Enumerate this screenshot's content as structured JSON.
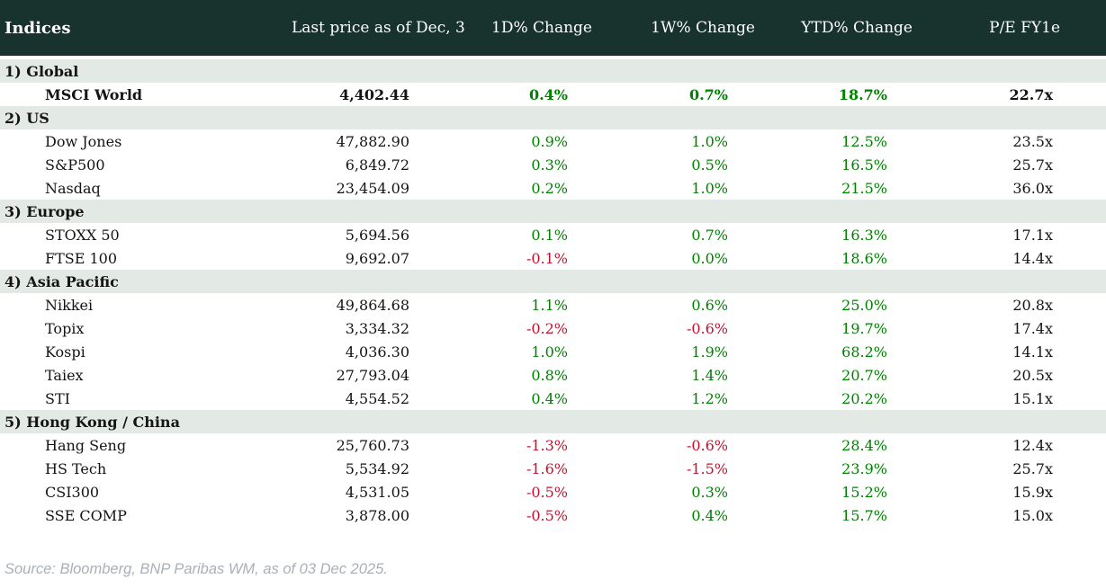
{
  "table": {
    "columns": [
      "Indices",
      "Last price as of Dec, 3",
      "1D% Change",
      "1W% Change",
      "YTD% Change",
      "P/E FY1e"
    ],
    "sections": [
      {
        "label": "1) Global",
        "rows": [
          {
            "name": "MSCI World",
            "price": "4,402.44",
            "d1": "0.4%",
            "w1": "0.7%",
            "ytd": "18.7%",
            "pe": "22.7x",
            "emphasis": true
          }
        ]
      },
      {
        "label": "2) US",
        "rows": [
          {
            "name": "Dow Jones",
            "price": "47,882.90",
            "d1": "0.9%",
            "w1": "1.0%",
            "ytd": "12.5%",
            "pe": "23.5x"
          },
          {
            "name": "S&P500",
            "price": "6,849.72",
            "d1": "0.3%",
            "w1": "0.5%",
            "ytd": "16.5%",
            "pe": "25.7x"
          },
          {
            "name": "Nasdaq",
            "price": "23,454.09",
            "d1": "0.2%",
            "w1": "1.0%",
            "ytd": "21.5%",
            "pe": "36.0x"
          }
        ]
      },
      {
        "label": "3) Europe",
        "rows": [
          {
            "name": "STOXX 50",
            "price": "5,694.56",
            "d1": "0.1%",
            "w1": "0.7%",
            "ytd": "16.3%",
            "pe": "17.1x"
          },
          {
            "name": "FTSE 100",
            "price": "9,692.07",
            "d1": "-0.1%",
            "w1": "0.0%",
            "ytd": "18.6%",
            "pe": "14.4x"
          }
        ]
      },
      {
        "label": "4) Asia Pacific",
        "rows": [
          {
            "name": "Nikkei",
            "price": "49,864.68",
            "d1": "1.1%",
            "w1": "0.6%",
            "ytd": "25.0%",
            "pe": "20.8x"
          },
          {
            "name": "Topix",
            "price": "3,334.32",
            "d1": "-0.2%",
            "w1": "-0.6%",
            "ytd": "19.7%",
            "pe": "17.4x"
          },
          {
            "name": "Kospi",
            "price": "4,036.30",
            "d1": "1.0%",
            "w1": "1.9%",
            "ytd": "68.2%",
            "pe": "14.1x"
          },
          {
            "name": "Taiex",
            "price": "27,793.04",
            "d1": "0.8%",
            "w1": "1.4%",
            "ytd": "20.7%",
            "pe": "20.5x"
          },
          {
            "name": "STI",
            "price": "4,554.52",
            "d1": "0.4%",
            "w1": "1.2%",
            "ytd": "20.2%",
            "pe": "15.1x"
          }
        ]
      },
      {
        "label": "5) Hong Kong / China",
        "rows": [
          {
            "name": "Hang Seng",
            "price": "25,760.73",
            "d1": "-1.3%",
            "w1": "-0.6%",
            "ytd": "28.4%",
            "pe": "12.4x"
          },
          {
            "name": "HS Tech",
            "price": "5,534.92",
            "d1": "-1.6%",
            "w1": "-1.5%",
            "ytd": "23.9%",
            "pe": "25.7x"
          },
          {
            "name": "CSI300",
            "price": "4,531.05",
            "d1": "-0.5%",
            "w1": "0.3%",
            "ytd": "15.2%",
            "pe": "15.9x"
          },
          {
            "name": "SSE COMP",
            "price": "3,878.00",
            "d1": "-0.5%",
            "w1": "0.4%",
            "ytd": "15.7%",
            "pe": "15.0x"
          }
        ]
      }
    ]
  },
  "source_note": "Source: Bloomberg, BNP Paribas WM, as of 03 Dec 2025.",
  "colors": {
    "header_bg": "#18322d",
    "header_text": "#ffffff",
    "band_bg": "#e3e9e5",
    "text": "#141414",
    "positive": "#008000",
    "negative": "#c8102e",
    "source_color": "#a9b0b7"
  }
}
